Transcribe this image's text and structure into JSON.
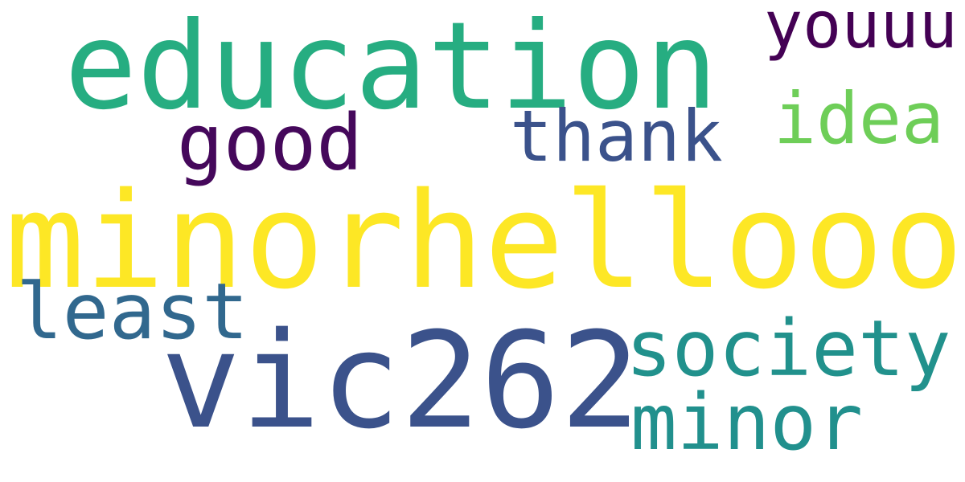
{
  "words": [
    {
      "text": "education",
      "color": "#26ad81"
    },
    {
      "text": "youuu",
      "color": "#440154"
    },
    {
      "text": "idea",
      "color": "#6ece58"
    },
    {
      "text": "good",
      "color": "#45085b"
    },
    {
      "text": "thank",
      "color": "#3b528b"
    },
    {
      "text": "minorhellooo",
      "color": "#fde725"
    },
    {
      "text": "least",
      "color": "#31688e"
    },
    {
      "text": "society",
      "color": "#21918c"
    },
    {
      "text": "vic262",
      "color": "#3b528b"
    },
    {
      "text": "minor",
      "color": "#21908d"
    }
  ]
}
